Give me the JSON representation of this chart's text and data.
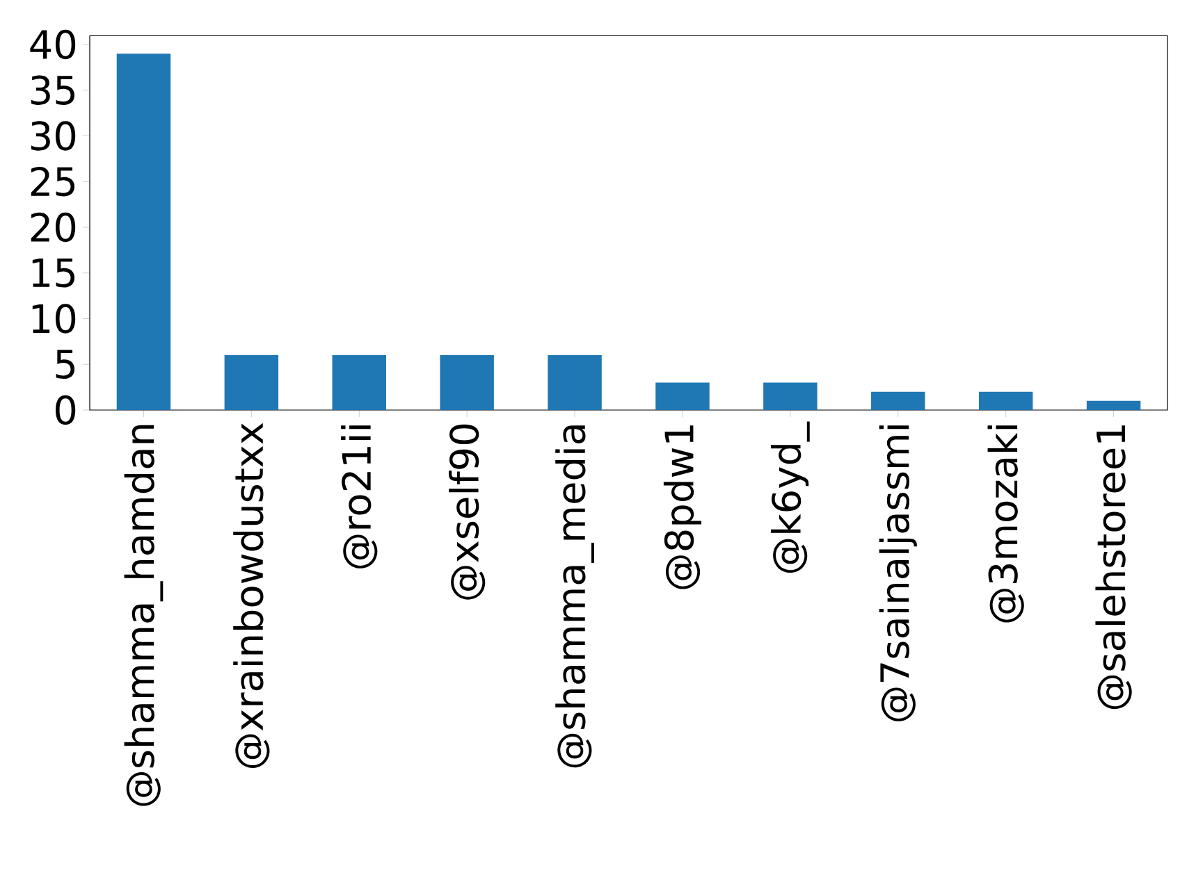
{
  "chart_data": {
    "type": "bar",
    "categories": [
      "@shamma_hamdan",
      "@xrainbowdustxx",
      "@ro21ii",
      "@xself90",
      "@shamma_media",
      "@8pdw1",
      "@k6yd_",
      "@7sainaljassmi",
      "@3mozaki",
      "@salehstoree1"
    ],
    "values": [
      39,
      6,
      6,
      6,
      6,
      3,
      3,
      2,
      2,
      1
    ],
    "color": "#1f77b4",
    "ylim": [
      0,
      40.95
    ],
    "yticks": [
      0,
      5,
      10,
      15,
      20,
      25,
      30,
      35,
      40
    ]
  }
}
